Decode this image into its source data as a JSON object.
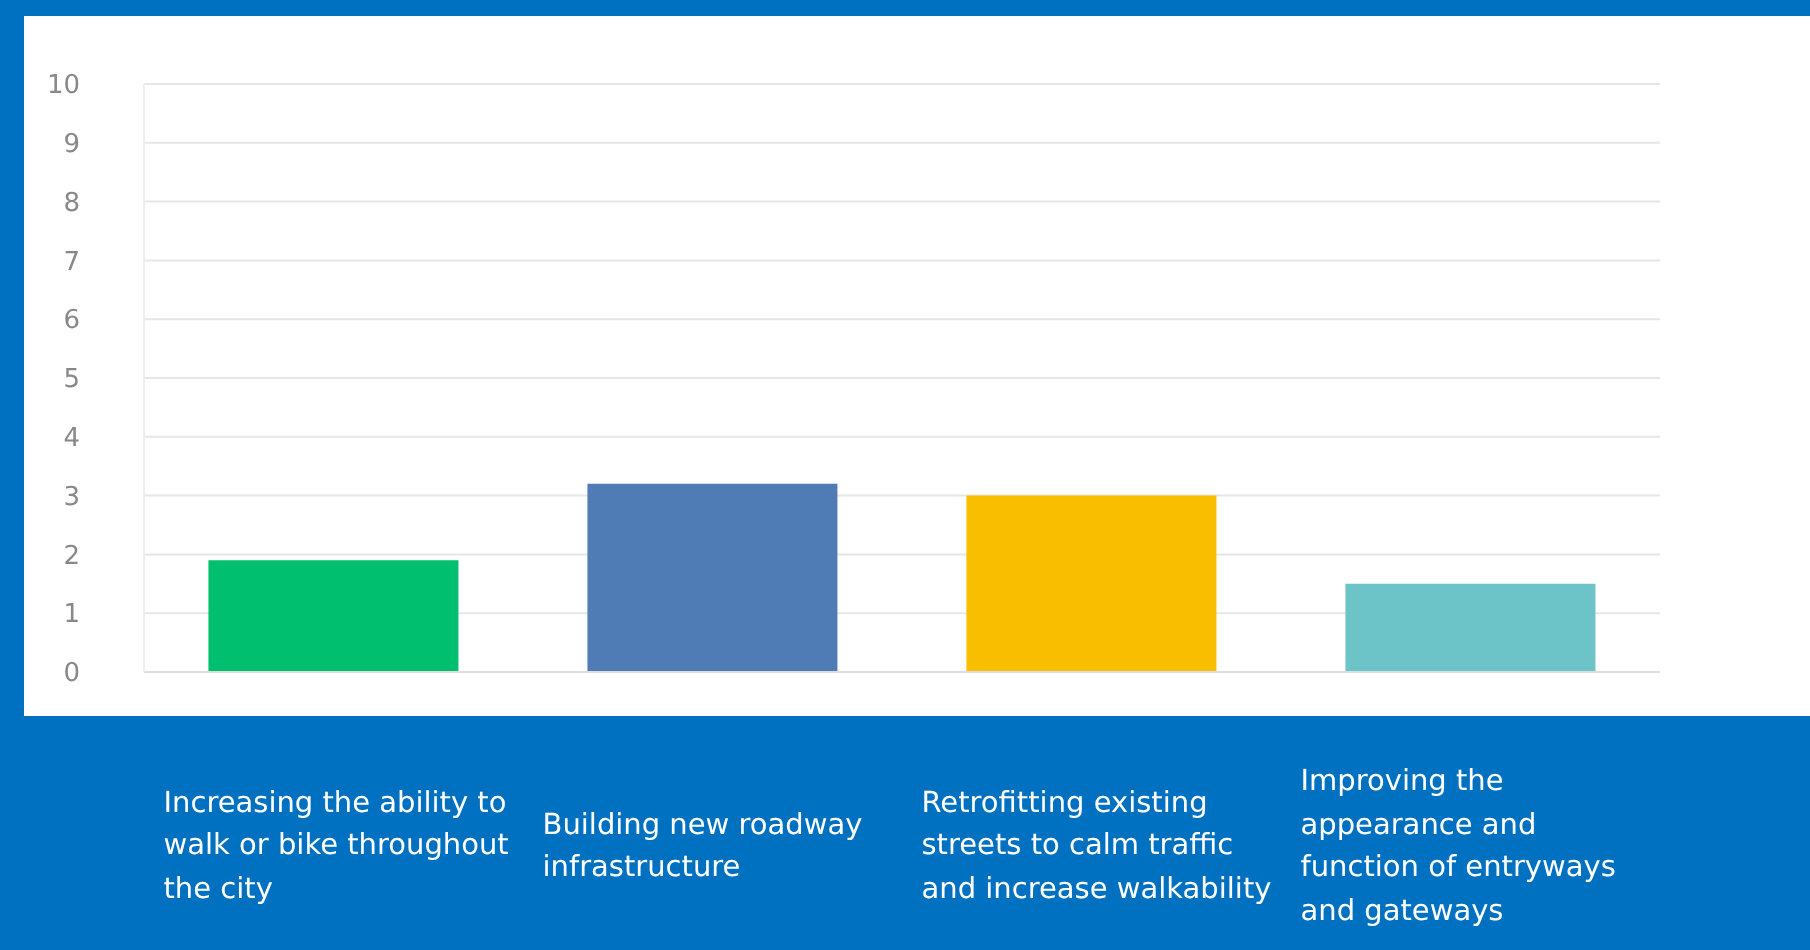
{
  "chart_data": {
    "type": "bar",
    "categories": [
      "Increasing the ability to walk or bike throughout the city",
      "Building new roadway infrastructure",
      "Retrofitting existing streets to calm traffic and increase walkability",
      "Improving the appearance and function of entryways and gateways"
    ],
    "values": [
      1.9,
      3.2,
      3.0,
      1.5
    ],
    "colors": [
      "#00bf6f",
      "#4f7cb5",
      "#f9be00",
      "#6cc4c8"
    ],
    "ylim": [
      0,
      10
    ],
    "yticks": [
      0,
      1,
      2,
      3,
      4,
      5,
      6,
      7,
      8,
      9,
      10
    ],
    "grid": "y"
  }
}
